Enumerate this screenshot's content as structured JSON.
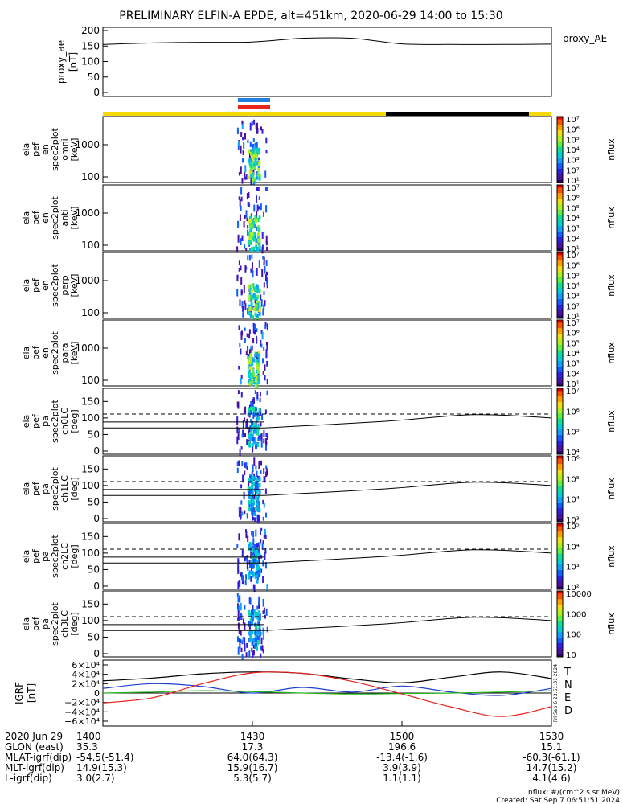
{
  "title": "PRELIMINARY ELFIN-A EPDE, alt=451km, 2020-06-29 14:00 to 15:30",
  "proxy_label": "proxy_AE",
  "colors": {
    "orbit_sun": "#f5d90a",
    "orbit_shadow": "#000000",
    "sci_zone_blue": "#1e7fe0",
    "sci_zone_red": "#e8251b",
    "field_T": "#000000",
    "field_N": "#1f3fd0",
    "field_E": "#22b522",
    "field_D": "#e8201b"
  },
  "panels": [
    {
      "ylabel": [
        "ela",
        "pef",
        "en",
        "spec2plot",
        "omni",
        "[keV]"
      ],
      "yticks": [
        "1000",
        "100"
      ]
    },
    {
      "ylabel": [
        "ela",
        "pef",
        "en",
        "spec2plot",
        "anti",
        "[keV]"
      ],
      "yticks": [
        "1000",
        "100"
      ]
    },
    {
      "ylabel": [
        "ela",
        "pef",
        "en",
        "spec2plot",
        "perp",
        "[keV]"
      ],
      "yticks": [
        "1000",
        "100"
      ]
    },
    {
      "ylabel": [
        "ela",
        "pef",
        "en",
        "spec2plot",
        "para",
        "[keV]"
      ],
      "yticks": [
        "1000",
        "100"
      ]
    },
    {
      "ylabel": [
        "ela",
        "pef",
        "pa",
        "spec2plot",
        "ch0LC",
        "[deg]"
      ],
      "yticks": [
        "150",
        "100",
        "50",
        "0"
      ]
    },
    {
      "ylabel": [
        "ela",
        "pef",
        "pa",
        "spec2plot",
        "ch1LC",
        "[deg]"
      ],
      "yticks": [
        "150",
        "100",
        "50",
        "0"
      ]
    },
    {
      "ylabel": [
        "ela",
        "pef",
        "pa",
        "spec2plot",
        "ch2LC",
        "[deg]"
      ],
      "yticks": [
        "150",
        "100",
        "50",
        "0"
      ]
    },
    {
      "ylabel": [
        "ela",
        "pef",
        "pa",
        "spec2plot",
        "ch3LC",
        "[deg]"
      ],
      "yticks": [
        "150",
        "100",
        "50",
        "0"
      ]
    }
  ],
  "colorbars": [
    {
      "label": "nflux",
      "ticks": [
        "10⁷",
        "10⁶",
        "10⁵",
        "10⁴",
        "10³",
        "10²",
        "10¹"
      ]
    },
    {
      "label": "nflux",
      "ticks": [
        "10⁷",
        "10⁶",
        "10⁵",
        "10⁴",
        "10³",
        "10²",
        "10¹"
      ]
    },
    {
      "label": "nflux",
      "ticks": [
        "10⁷",
        "10⁶",
        "10⁵",
        "10⁴",
        "10³",
        "10²",
        "10¹"
      ]
    },
    {
      "label": "nflux",
      "ticks": [
        "10⁷",
        "10⁶",
        "10⁵",
        "10⁴",
        "10³",
        "10²",
        "10¹"
      ]
    },
    {
      "label": "nflux",
      "ticks": [
        "10⁷",
        "10⁶",
        "10⁵",
        "10⁴"
      ]
    },
    {
      "label": "nflux",
      "ticks": [
        "10⁶",
        "10⁵",
        "10⁴",
        "10³"
      ]
    },
    {
      "label": "nflux",
      "ticks": [
        "10⁵",
        "10⁴",
        "10³",
        "10²"
      ]
    },
    {
      "label": "nflux",
      "ticks": [
        "10000",
        "1000",
        "100",
        "10"
      ]
    }
  ],
  "proxy_ylabel": [
    "proxy_ae",
    "[nT]"
  ],
  "proxy_yticks": [
    "200",
    "150",
    "100",
    "50",
    "0"
  ],
  "igrf_ylabel": [
    "IGRF",
    "[nT]"
  ],
  "igrf_yticks": [
    "6×10⁴",
    "4×10⁴",
    "2×10⁴",
    "0",
    "−2×10⁴",
    "−4×10⁴",
    "−6×10⁴"
  ],
  "igrf_legend": [
    "T",
    "N",
    "E",
    "D"
  ],
  "side_stamp": "Fri Sep  6 23:51:31 2024",
  "footer": {
    "rows": [
      {
        "label": "2020 Jun 29",
        "values": [
          "1400",
          "1430",
          "1500",
          "1530"
        ]
      },
      {
        "label": "GLON (east)",
        "values": [
          "35.3",
          "17.3",
          "196.6",
          "15.1"
        ]
      },
      {
        "label": "MLAT-igrf(dip)",
        "values": [
          "-54.5(-51.4)",
          "64.0(64.3)",
          "-13.4(-1.6)",
          "-60.3(-61.1)"
        ]
      },
      {
        "label": "MLT-igrf(dip)",
        "values": [
          "14.9(15.3)",
          "15.9(16.7)",
          "3.9(3.9)",
          "14.7(15.2)"
        ]
      },
      {
        "label": "L-igrf(dip)",
        "values": [
          "3.0(2.7)",
          "5.3(5.7)",
          "1.1(1.1)",
          "4.1(4.6)"
        ]
      }
    ],
    "units": "nflux: #/(cm^2 s sr MeV)",
    "created": "Created: Sat Sep  7 06:51:51 2024"
  },
  "chart_data": {
    "type": "heatmap",
    "time_range": [
      "14:00",
      "15:30"
    ],
    "proxy_ae": {
      "ylim": [
        0,
        200
      ],
      "time": [
        "14:00",
        "14:10",
        "14:20",
        "14:30",
        "14:40",
        "14:50",
        "15:00",
        "15:10",
        "15:20",
        "15:30"
      ],
      "values": [
        155,
        160,
        162,
        163,
        175,
        175,
        157,
        155,
        155,
        156
      ]
    },
    "igrf": {
      "ylim": [
        -60000,
        60000
      ],
      "time": [
        "14:00",
        "14:10",
        "14:20",
        "14:30",
        "14:40",
        "14:50",
        "15:00",
        "15:10",
        "15:20",
        "15:30"
      ],
      "series": [
        {
          "name": "T",
          "values": [
            26000,
            32000,
            41000,
            45000,
            42000,
            30000,
            22000,
            34000,
            45000,
            31000
          ]
        },
        {
          "name": "N",
          "values": [
            10000,
            20000,
            14000,
            0,
            12000,
            2000,
            15000,
            2000,
            -5000,
            10000
          ]
        },
        {
          "name": "E",
          "values": [
            0,
            2000,
            5000,
            3000,
            0,
            -2000,
            -1000,
            0,
            2000,
            5000
          ]
        },
        {
          "name": "D",
          "values": [
            -21000,
            -10000,
            20000,
            43000,
            42000,
            25000,
            -2000,
            -30000,
            -50000,
            -29000
          ]
        }
      ]
    },
    "pitch_angle_reference": {
      "dashed_deg": 112,
      "solid_upper_deg": 88,
      "solid_lower_start_deg": 70,
      "solid_lower_peak_deg": 110
    }
  }
}
